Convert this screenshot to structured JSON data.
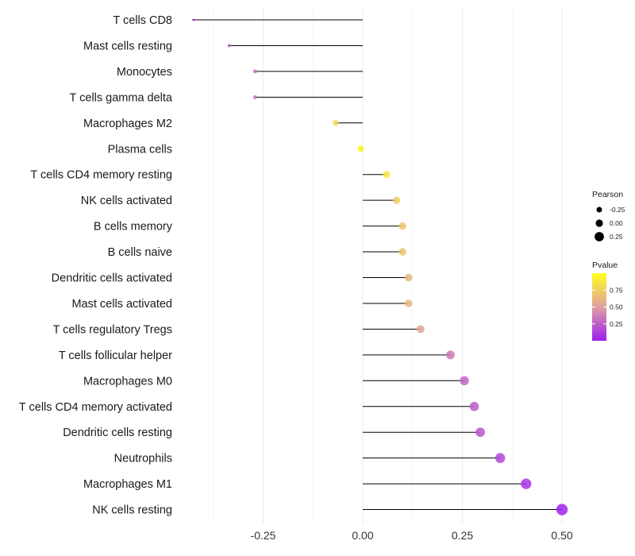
{
  "chart_data": {
    "type": "lollipop",
    "title": "",
    "xlabel": "",
    "ylabel": "",
    "xlim": [
      -0.43,
      0.52
    ],
    "x_ticks": [
      -0.25,
      0.0,
      0.25,
      0.5
    ],
    "x_tick_labels": [
      "-0.25",
      "0.00",
      "0.25",
      "0.50"
    ],
    "grid": true,
    "categories": [
      "T cells CD8",
      "Mast cells resting",
      "Monocytes",
      "T cells gamma delta",
      "Macrophages M2",
      "Plasma cells",
      "T cells CD4 memory resting",
      "NK cells activated",
      "B cells memory",
      "B cells naive",
      "Dendritic cells activated",
      "Mast cells activated",
      "T cells regulatory  Tregs ",
      "T cells follicular helper",
      "Macrophages M0",
      "T cells CD4 memory activated",
      "Dendritic cells resting",
      "Neutrophils",
      "Macrophages M1",
      "NK cells resting"
    ],
    "values": [
      -0.425,
      -0.335,
      -0.27,
      -0.27,
      -0.068,
      -0.005,
      0.06,
      0.085,
      0.1,
      0.1,
      0.115,
      0.115,
      0.145,
      0.22,
      0.255,
      0.28,
      0.295,
      0.345,
      0.41,
      0.5
    ],
    "pvalues": [
      0.05,
      0.22,
      0.32,
      0.32,
      0.8,
      0.97,
      0.87,
      0.73,
      0.7,
      0.7,
      0.63,
      0.63,
      0.52,
      0.35,
      0.27,
      0.24,
      0.22,
      0.15,
      0.08,
      0.02
    ],
    "size_legend": {
      "title": "Pearson",
      "values": [
        -0.25,
        0.0,
        0.25
      ],
      "labels": [
        "-0.25",
        "0.00",
        "0.25"
      ]
    },
    "color_legend": {
      "title": "Pvalue",
      "ticks": [
        0.75,
        0.5,
        0.25
      ],
      "labels": [
        "0.75",
        "0.50",
        "0.25"
      ],
      "range": [
        0.0,
        1.0
      ],
      "low_color": "#9b1ff0",
      "mid_color": "#e0a0a0",
      "high_color": "#ffff1c"
    }
  }
}
